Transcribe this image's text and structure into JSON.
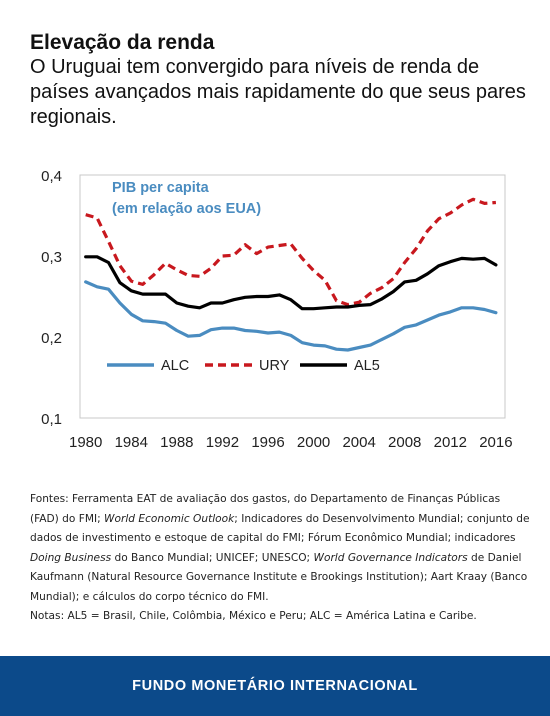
{
  "header": {
    "title": "Elevação da renda",
    "subtitle": "O Uruguai tem convergido para níveis de renda de países avançados mais rapidamente do que seus pares regionais."
  },
  "chart_data": {
    "type": "line",
    "annotation": [
      "PIB per capita",
      "(em relação aos EUA)"
    ],
    "x": [
      1980,
      1981,
      1982,
      1983,
      1984,
      1985,
      1986,
      1987,
      1988,
      1989,
      1990,
      1991,
      1992,
      1993,
      1994,
      1995,
      1996,
      1997,
      1998,
      1999,
      2000,
      2001,
      2002,
      2003,
      2004,
      2005,
      2006,
      2007,
      2008,
      2009,
      2010,
      2011,
      2012,
      2013,
      2014,
      2015,
      2016
    ],
    "xticks": [
      1980,
      1984,
      1988,
      1992,
      1996,
      2000,
      2004,
      2008,
      2012,
      2016
    ],
    "xlim": [
      1979.5,
      2016.8
    ],
    "ylim": [
      0.1,
      0.4
    ],
    "yticks": [
      0.1,
      0.2,
      0.3,
      0.4
    ],
    "ytick_labels": [
      "0,1",
      "0,2",
      "0,3",
      "0,4"
    ],
    "grid": false,
    "legend_position": "bottom-left inside plot",
    "series": [
      {
        "name": "ALC",
        "color": "#4a8cc0",
        "style": "solid",
        "values": [
          0.268,
          0.262,
          0.259,
          0.242,
          0.228,
          0.22,
          0.219,
          0.217,
          0.208,
          0.201,
          0.202,
          0.209,
          0.211,
          0.211,
          0.208,
          0.207,
          0.205,
          0.206,
          0.202,
          0.193,
          0.19,
          0.189,
          0.185,
          0.184,
          0.187,
          0.19,
          0.197,
          0.204,
          0.212,
          0.215,
          0.221,
          0.227,
          0.231,
          0.236,
          0.236,
          0.234,
          0.23
        ]
      },
      {
        "name": "URY",
        "color": "#c8181e",
        "style": "dashed",
        "values": [
          0.351,
          0.347,
          0.318,
          0.288,
          0.269,
          0.265,
          0.277,
          0.291,
          0.283,
          0.276,
          0.275,
          0.285,
          0.3,
          0.301,
          0.314,
          0.303,
          0.311,
          0.313,
          0.315,
          0.297,
          0.282,
          0.27,
          0.245,
          0.24,
          0.243,
          0.254,
          0.261,
          0.272,
          0.292,
          0.309,
          0.331,
          0.346,
          0.353,
          0.363,
          0.37,
          0.365,
          0.366
        ]
      },
      {
        "name": "AL5",
        "color": "#000000",
        "style": "solid",
        "values": [
          0.299,
          0.299,
          0.292,
          0.267,
          0.257,
          0.253,
          0.253,
          0.253,
          0.242,
          0.238,
          0.236,
          0.242,
          0.242,
          0.246,
          0.249,
          0.25,
          0.25,
          0.252,
          0.246,
          0.235,
          0.235,
          0.236,
          0.237,
          0.237,
          0.239,
          0.24,
          0.247,
          0.256,
          0.268,
          0.27,
          0.278,
          0.288,
          0.293,
          0.297,
          0.296,
          0.297,
          0.289
        ]
      }
    ]
  },
  "notes": {
    "sources_prefix": "Fontes: Ferramenta EAT de avaliação dos gastos, do Departamento de Finanças Públicas (FAD) do FMI; ",
    "weo": "World Economic Outlook",
    "sources_mid1": "; Indicadores do Desenvolvimento Mundial; conjunto de dados de investimento e estoque de capital do FMI; Fórum Econômico Mundial; indicadores ",
    "doing_business": "Doing Business",
    "sources_mid2": " do Banco Mundial; UNICEF; UNESCO; ",
    "governance": "World Governance Indicators",
    "sources_suffix": " de Daniel Kaufmann (Natural Resource Governance Institute e Brookings Institution); Aart Kraay (Banco Mundial); e cálculos do corpo técnico do FMI.",
    "notes_line": "Notas: AL5 = Brasil, Chile, Colômbia, México e Peru; ALC = América Latina e Caribe."
  },
  "footer": {
    "label": "FUNDO MONETÁRIO INTERNACIONAL"
  }
}
